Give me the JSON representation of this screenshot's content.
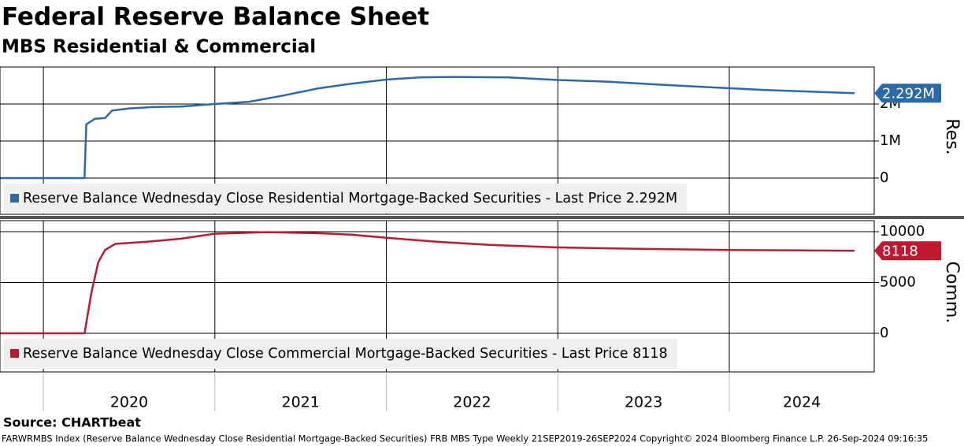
{
  "title": "Federal Reserve Balance Sheet",
  "subtitle": "MBS Residential & Commercial",
  "source": "Source: CHARTbeat",
  "footnote": "FARWRMBS Index (Reserve Balance Wednesday Close Residential Mortgage-Backed Securities) FRB MBS Type  Weekly 21SEP2019-26SEP2024 Copyright© 2024 Bloomberg Finance L.P. 26-Sep-2024 09:16:35",
  "chart_data": [
    {
      "type": "line",
      "y_label": "Res.",
      "grid": true,
      "x": [
        2019.75,
        2020.24,
        2020.25,
        2020.3,
        2020.36,
        2020.4,
        2020.5,
        2020.65,
        2020.8,
        2021.0,
        2021.2,
        2021.4,
        2021.6,
        2021.8,
        2022.0,
        2022.2,
        2022.4,
        2022.7,
        2023.0,
        2023.3,
        2023.6,
        2023.9,
        2024.2,
        2024.5,
        2024.73
      ],
      "xlim": [
        2019.747,
        2024.845
      ],
      "xticks": [
        2020,
        2021,
        2022,
        2023,
        2024
      ],
      "ylim": [
        -980000,
        3000000
      ],
      "yticks": [
        0,
        {
          "value": 1000000,
          "label": "1M"
        },
        {
          "value": 2000000,
          "label": "2M"
        }
      ],
      "series": [
        {
          "name": "Reserve Balance Wednesday Close Residential Mortgage-Backed Securities - Last Price 2.292M",
          "color": "#2a6aa8",
          "values": [
            0,
            0,
            1450000,
            1600000,
            1620000,
            1820000,
            1880000,
            1920000,
            1930000,
            2000000,
            2060000,
            2230000,
            2420000,
            2550000,
            2660000,
            2720000,
            2730000,
            2720000,
            2650000,
            2600000,
            2520000,
            2450000,
            2380000,
            2330000,
            2292000
          ],
          "value_labels": [
            null,
            null,
            null,
            null,
            null,
            null,
            null,
            null,
            null,
            null,
            null,
            null,
            null,
            null,
            null,
            null,
            null,
            null,
            null,
            null,
            null,
            null,
            null,
            null,
            "2.292M"
          ]
        }
      ]
    },
    {
      "type": "line",
      "y_label": "Comm.",
      "grid": true,
      "x": [
        2019.75,
        2020.24,
        2020.28,
        2020.32,
        2020.36,
        2020.42,
        2020.6,
        2020.8,
        2021.0,
        2021.3,
        2021.6,
        2021.8,
        2022.0,
        2022.3,
        2022.6,
        2023.0,
        2023.5,
        2024.0,
        2024.5,
        2024.73
      ],
      "xlim": [
        2019.747,
        2024.845
      ],
      "xticks": [
        2020,
        2021,
        2022,
        2023,
        2024
      ],
      "ylim": [
        -3800,
        11085
      ],
      "yticks": [
        0,
        5000,
        10000
      ],
      "series": [
        {
          "name": "Reserve Balance Wednesday Close Commercial Mortgage-Backed Securities - Last Price 8118",
          "color": "#c0182f",
          "values": [
            0,
            0,
            4000,
            7000,
            8200,
            8800,
            9000,
            9300,
            9800,
            9950,
            9850,
            9700,
            9400,
            9000,
            8700,
            8450,
            8300,
            8200,
            8150,
            8118
          ]
        }
      ]
    }
  ]
}
